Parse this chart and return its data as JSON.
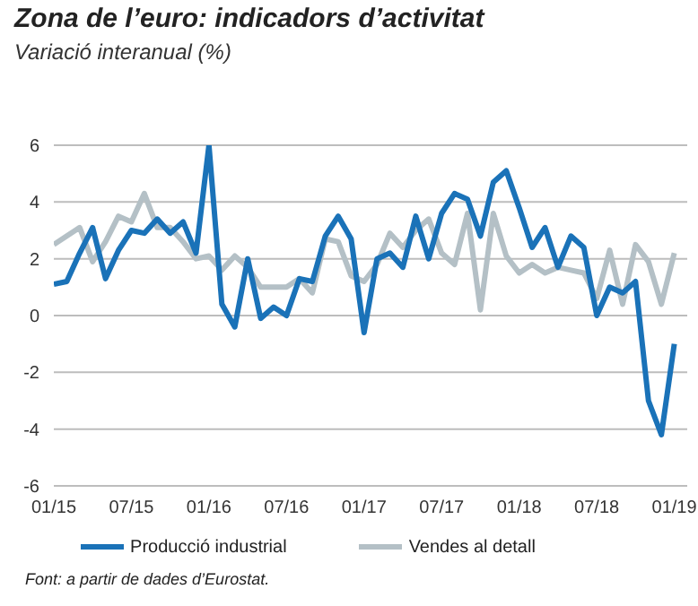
{
  "chart_data": {
    "type": "line",
    "title": "Zona de l’euro: indicadors d’activitat",
    "subtitle": "Variació interanual (%)",
    "x": [
      "2015-01",
      "2015-02",
      "2015-03",
      "2015-04",
      "2015-05",
      "2015-06",
      "2015-07",
      "2015-08",
      "2015-09",
      "2015-10",
      "2015-11",
      "2015-12",
      "2016-01",
      "2016-02",
      "2016-03",
      "2016-04",
      "2016-05",
      "2016-06",
      "2016-07",
      "2016-08",
      "2016-09",
      "2016-10",
      "2016-11",
      "2016-12",
      "2017-01",
      "2017-02",
      "2017-03",
      "2017-04",
      "2017-05",
      "2017-06",
      "2017-07",
      "2017-08",
      "2017-09",
      "2017-10",
      "2017-11",
      "2017-12",
      "2018-01",
      "2018-02",
      "2018-03",
      "2018-04",
      "2018-05",
      "2018-06",
      "2018-07",
      "2018-08",
      "2018-09",
      "2018-10",
      "2018-11",
      "2018-12",
      "2019-01"
    ],
    "series": [
      {
        "name": "Vendes al detall",
        "color": "#b4c0c6",
        "values": [
          2.5,
          2.8,
          3.1,
          1.9,
          2.6,
          3.5,
          3.3,
          4.3,
          3.1,
          3.1,
          2.6,
          2.0,
          2.1,
          1.6,
          2.1,
          1.7,
          1.0,
          1.0,
          1.0,
          1.3,
          0.8,
          2.7,
          2.6,
          1.4,
          1.2,
          1.8,
          2.9,
          2.4,
          3.0,
          3.4,
          2.2,
          1.8,
          3.6,
          0.2,
          3.6,
          2.1,
          1.5,
          1.8,
          1.5,
          1.7,
          1.6,
          1.5,
          0.6,
          2.3,
          0.4,
          2.5,
          1.9,
          0.4,
          2.2
        ]
      },
      {
        "name": "Producció industrial",
        "color": "#1a72b8",
        "values": [
          1.1,
          1.2,
          2.2,
          3.1,
          1.3,
          2.3,
          3.0,
          2.9,
          3.4,
          2.9,
          3.3,
          2.2,
          6.0,
          0.4,
          -0.4,
          2.0,
          -0.1,
          0.3,
          0.0,
          1.3,
          1.2,
          2.8,
          3.5,
          2.7,
          -0.6,
          2.0,
          2.2,
          1.7,
          3.5,
          2.0,
          3.6,
          4.3,
          4.1,
          2.8,
          4.7,
          5.1,
          3.8,
          2.4,
          3.1,
          1.7,
          2.8,
          2.4,
          0.0,
          1.0,
          0.8,
          1.2,
          -3.0,
          -4.2,
          -1.0
        ]
      }
    ],
    "xlim": [
      "2015-01",
      "2019-02"
    ],
    "xticks": [
      {
        "value": "2015-01",
        "label": "01/15"
      },
      {
        "value": "2015-07",
        "label": "07/15"
      },
      {
        "value": "2016-01",
        "label": "01/16"
      },
      {
        "value": "2016-07",
        "label": "07/16"
      },
      {
        "value": "2017-01",
        "label": "01/17"
      },
      {
        "value": "2017-07",
        "label": "07/17"
      },
      {
        "value": "2018-01",
        "label": "01/18"
      },
      {
        "value": "2018-07",
        "label": "07/18"
      },
      {
        "value": "2019-01",
        "label": "01/19"
      }
    ],
    "ylim": [
      -6,
      6
    ],
    "yticks": [
      -6,
      -4,
      -2,
      0,
      2,
      4,
      6
    ],
    "grid": "y",
    "legend": "bottom",
    "marker": "none",
    "line_style": "solid",
    "annotations": [
      "Font: a partir de dades d’Eurostat."
    ]
  }
}
